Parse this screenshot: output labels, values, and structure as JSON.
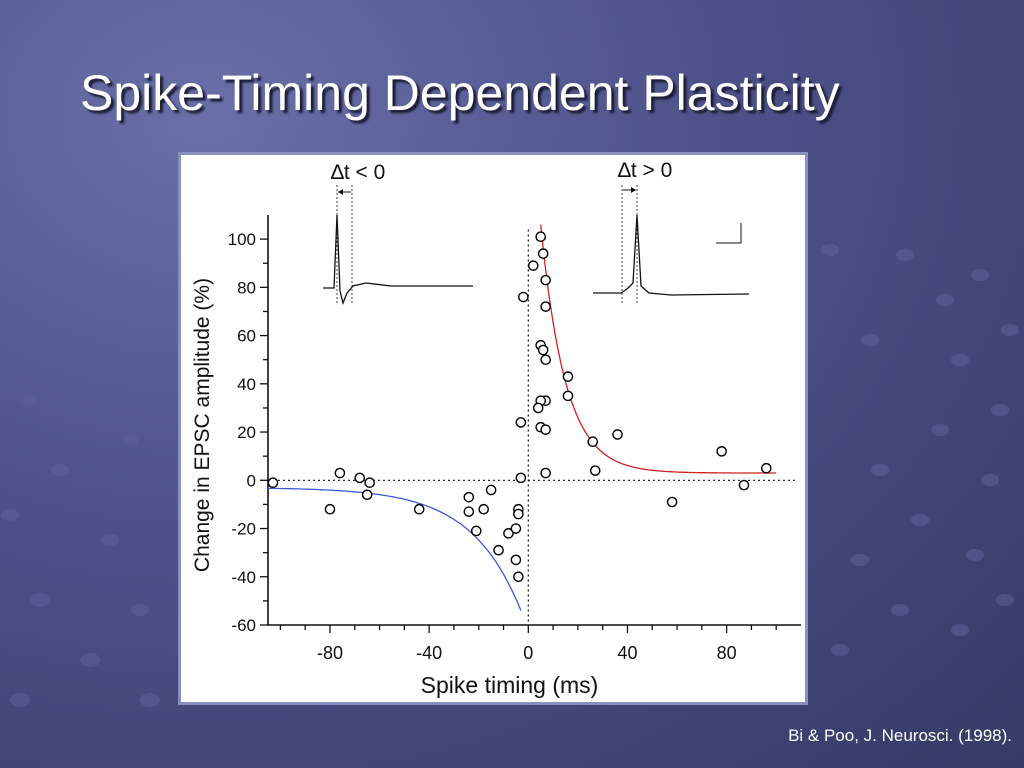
{
  "slide": {
    "title": "Spike-Timing Dependent Plasticity",
    "citation": "Bi & Poo, J. Neurosci. (1998)."
  },
  "colors": {
    "background": "#4d5188",
    "ltp_fit": "#d42020",
    "ltd_fit": "#3a5bd8",
    "markers": "#000000"
  },
  "insets": {
    "left_label": "∆t < 0",
    "right_label": "∆t > 0"
  },
  "chart_data": {
    "type": "scatter",
    "title": "",
    "xlabel": "Spike timing (ms)",
    "ylabel": "Change in EPSC amplitude (%)",
    "xlim": [
      -105,
      110
    ],
    "ylim": [
      -60,
      110
    ],
    "xticks": [
      -80,
      -40,
      0,
      40,
      80
    ],
    "yticks": [
      100,
      80,
      60,
      40,
      20,
      0,
      -20,
      -40,
      -60
    ],
    "grid": false,
    "reference_lines": [
      "x = 0",
      "y = 0"
    ],
    "points": [
      {
        "x": -103,
        "y": -1
      },
      {
        "x": -80,
        "y": -12
      },
      {
        "x": -76,
        "y": 3
      },
      {
        "x": -68,
        "y": 1
      },
      {
        "x": -64,
        "y": -1
      },
      {
        "x": -65,
        "y": -6
      },
      {
        "x": -44,
        "y": -12
      },
      {
        "x": -24,
        "y": -7
      },
      {
        "x": -24,
        "y": -13
      },
      {
        "x": -21,
        "y": -21
      },
      {
        "x": -18,
        "y": -12
      },
      {
        "x": -15,
        "y": -4
      },
      {
        "x": -12,
        "y": -29
      },
      {
        "x": -8,
        "y": -22
      },
      {
        "x": -5,
        "y": -20
      },
      {
        "x": -4,
        "y": -12
      },
      {
        "x": -4,
        "y": -14
      },
      {
        "x": -5,
        "y": -33
      },
      {
        "x": -4,
        "y": -40
      },
      {
        "x": -3,
        "y": 1
      },
      {
        "x": -3,
        "y": 24
      },
      {
        "x": -2,
        "y": 76
      },
      {
        "x": 2,
        "y": 89
      },
      {
        "x": 5,
        "y": 101
      },
      {
        "x": 6,
        "y": 94
      },
      {
        "x": 7,
        "y": 83
      },
      {
        "x": 7,
        "y": 72
      },
      {
        "x": 5,
        "y": 56
      },
      {
        "x": 6,
        "y": 54
      },
      {
        "x": 7,
        "y": 50
      },
      {
        "x": 7,
        "y": 33
      },
      {
        "x": 5,
        "y": 33
      },
      {
        "x": 4,
        "y": 30
      },
      {
        "x": 5,
        "y": 22
      },
      {
        "x": 7,
        "y": 21
      },
      {
        "x": 7,
        "y": 3
      },
      {
        "x": 16,
        "y": 43
      },
      {
        "x": 16,
        "y": 35
      },
      {
        "x": 26,
        "y": 16
      },
      {
        "x": 27,
        "y": 4
      },
      {
        "x": 36,
        "y": 19
      },
      {
        "x": 58,
        "y": -9
      },
      {
        "x": 78,
        "y": 12
      },
      {
        "x": 87,
        "y": -2
      },
      {
        "x": 96,
        "y": 5
      }
    ],
    "fits": [
      {
        "side": "ltp",
        "x_range": [
          5,
          100
        ],
        "A": 103,
        "tau": 10,
        "offset": 3
      },
      {
        "side": "ltd",
        "x_range": [
          -105,
          -3
        ],
        "A": -51,
        "tau": 20,
        "offset": -3
      }
    ]
  }
}
